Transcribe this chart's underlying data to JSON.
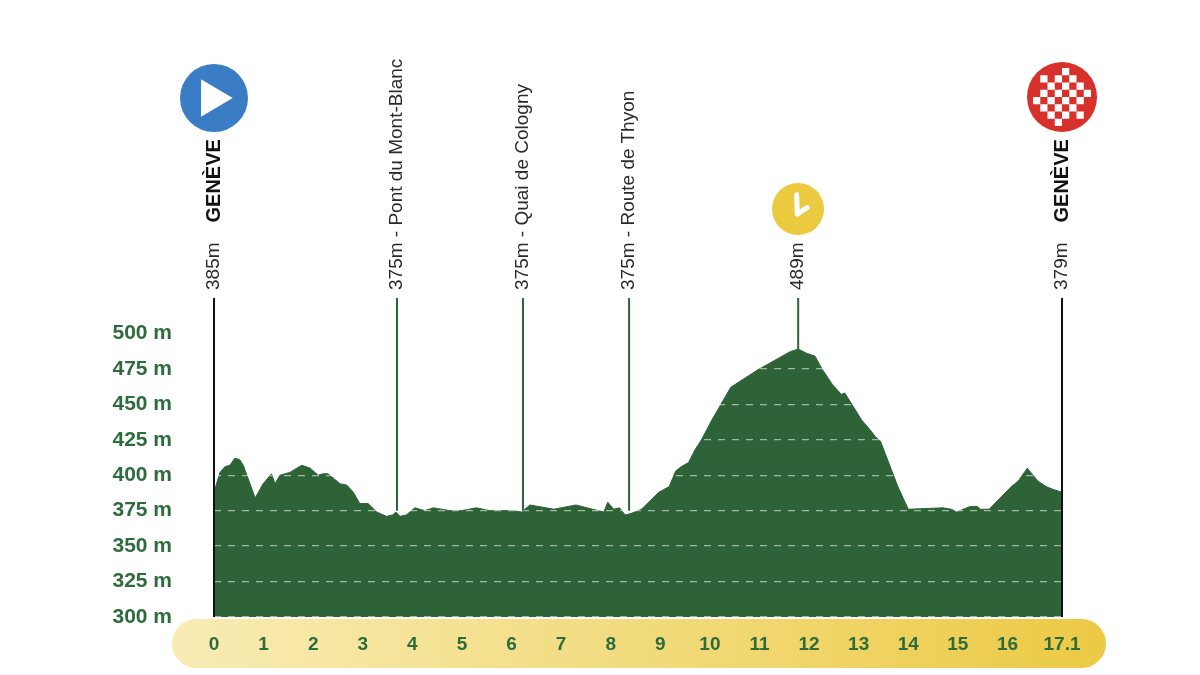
{
  "chart_data": {
    "type": "area",
    "color": "#2e6338",
    "x": [
      0,
      0.12,
      0.22,
      0.32,
      0.42,
      0.52,
      0.59,
      0.83,
      0.99,
      1.16,
      1.23,
      1.33,
      1.53,
      1.77,
      1.94,
      2.1,
      2.2,
      2.3,
      2.54,
      2.68,
      2.81,
      2.94,
      3.11,
      3.28,
      3.48,
      3.6,
      3.67,
      3.75,
      3.88,
      4.05,
      4.25,
      4.42,
      4.76,
      4.99,
      5.29,
      5.56,
      6.03,
      6.2,
      6.37,
      6.7,
      6.85,
      7.3,
      7.86,
      7.94,
      8.06,
      8.18,
      8.29,
      8.41,
      8.62,
      8.97,
      9.18,
      9.31,
      9.42,
      9.57,
      9.7,
      9.83,
      10.04,
      10.42,
      10.95,
      11.61,
      11.78,
      11.95,
      12.12,
      12.26,
      12.47,
      12.65,
      12.72,
      13.06,
      13.23,
      13.34,
      13.44,
      13.79,
      14.0,
      14.7,
      14.87,
      14.97,
      15.25,
      15.39,
      15.45,
      15.63,
      16.08,
      16.22,
      16.4,
      16.61,
      16.78,
      16.92,
      17.1
    ],
    "values": [
      388,
      402,
      406,
      407,
      412,
      411,
      407,
      384,
      394,
      401,
      394,
      400,
      402,
      407,
      405,
      400,
      401,
      401,
      394,
      393,
      388,
      380,
      380,
      374,
      371,
      372,
      374,
      371,
      372,
      377,
      375,
      377,
      375,
      375,
      377,
      375,
      375,
      374,
      379,
      377,
      376,
      379,
      374,
      381,
      376,
      377,
      372,
      373,
      376,
      388,
      392,
      403,
      406,
      409,
      418,
      425,
      439,
      462,
      474,
      487,
      489,
      486,
      484,
      475,
      464,
      457,
      458,
      439,
      432,
      427,
      424,
      392,
      376,
      377,
      376,
      374,
      378,
      378,
      376,
      376,
      392,
      396,
      405,
      396,
      392,
      390,
      388
    ],
    "xlim": [
      0,
      17.1
    ],
    "xticks": [
      0,
      1,
      2,
      3,
      4,
      5,
      6,
      7,
      8,
      9,
      10,
      11,
      12,
      13,
      14,
      15,
      16,
      17.1
    ],
    "ylim": [
      300,
      525
    ],
    "yticks": [
      {
        "value": 300,
        "label": "300 m"
      },
      {
        "value": 325,
        "label": "325 m"
      },
      {
        "value": 350,
        "label": "350 m"
      },
      {
        "value": 375,
        "label": "375 m"
      },
      {
        "value": 400,
        "label": "400 m"
      },
      {
        "value": 425,
        "label": "425 m"
      },
      {
        "value": 450,
        "label": "450 m"
      },
      {
        "value": 475,
        "label": "475 m"
      },
      {
        "value": 500,
        "label": "500 m"
      }
    ],
    "grid": "y",
    "annotations": [
      "385m GENÈVE",
      "379m GENÈVE",
      {
        "text": "375m - Pont du Mont-Blanc",
        "x": 3.69,
        "y": 375
      },
      {
        "text": "375m - Quai de Cologny",
        "x": 6.23,
        "y": 375
      },
      {
        "text": "375m - Route de Thyon",
        "x": 8.37,
        "y": 375
      },
      {
        "text": "489m",
        "x": 11.78,
        "y": 489
      }
    ]
  }
}
